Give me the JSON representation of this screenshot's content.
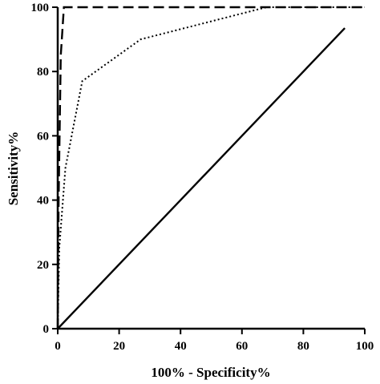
{
  "chart_data": {
    "type": "line",
    "title": "",
    "xlabel": "100% - Specificity%",
    "ylabel": "Sensitivity%",
    "xlim": [
      0,
      100
    ],
    "ylim": [
      0,
      100
    ],
    "x_ticks": [
      "0",
      "20",
      "40",
      "60",
      "80",
      "100"
    ],
    "y_ticks": [
      "0",
      "20",
      "40",
      "60",
      "80",
      "100"
    ],
    "grid": false,
    "series": [
      {
        "style": "dashed",
        "color": "#000000",
        "points": [
          [
            0,
            0
          ],
          [
            0.3,
            40
          ],
          [
            1,
            85
          ],
          [
            2,
            100
          ],
          [
            100,
            100
          ]
        ]
      },
      {
        "style": "dotted",
        "color": "#000000",
        "points": [
          [
            0,
            0
          ],
          [
            0.5,
            25
          ],
          [
            2.5,
            50
          ],
          [
            8,
            77
          ],
          [
            27,
            90
          ],
          [
            68,
            100
          ],
          [
            100,
            100
          ]
        ]
      },
      {
        "style": "solid",
        "color": "#000000",
        "points": [
          [
            0,
            0
          ],
          [
            93.5,
            93.5
          ]
        ]
      }
    ]
  }
}
